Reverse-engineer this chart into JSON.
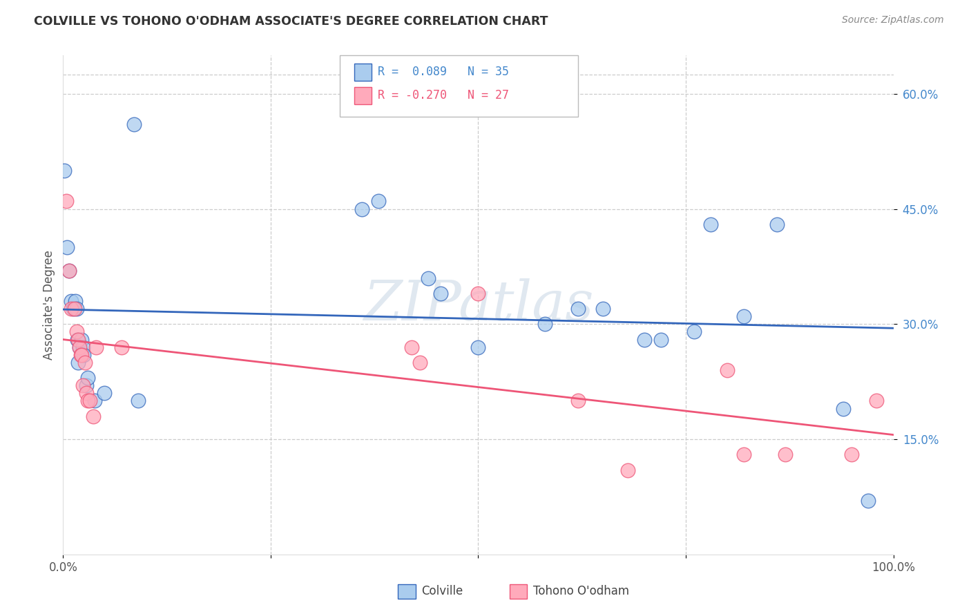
{
  "title": "COLVILLE VS TOHONO O'ODHAM ASSOCIATE'S DEGREE CORRELATION CHART",
  "source": "Source: ZipAtlas.com",
  "ylabel": "Associate's Degree",
  "legend_label1": "Colville",
  "legend_label2": "Tohono O'odham",
  "r1": 0.089,
  "n1": 35,
  "r2": -0.27,
  "n2": 27,
  "color_blue": "#aaccee",
  "color_pink": "#ffaabb",
  "line_color_blue": "#3366bb",
  "line_color_pink": "#ee5577",
  "watermark": "ZIPatlas",
  "xmin": 0.0,
  "xmax": 1.0,
  "ymin": 0.0,
  "ymax": 0.65,
  "ytick_values": [
    0.15,
    0.3,
    0.45,
    0.6
  ],
  "ytick_labels": [
    "15.0%",
    "30.0%",
    "45.0%",
    "60.0%"
  ],
  "colville_x": [
    0.001,
    0.005,
    0.007,
    0.01,
    0.012,
    0.015,
    0.016,
    0.017,
    0.018,
    0.02,
    0.022,
    0.024,
    0.025,
    0.028,
    0.03,
    0.038,
    0.05,
    0.085,
    0.09,
    0.36,
    0.38,
    0.44,
    0.455,
    0.5,
    0.58,
    0.62,
    0.65,
    0.7,
    0.72,
    0.76,
    0.78,
    0.82,
    0.86,
    0.94,
    0.97
  ],
  "colville_y": [
    0.5,
    0.4,
    0.37,
    0.33,
    0.32,
    0.33,
    0.32,
    0.28,
    0.25,
    0.27,
    0.28,
    0.27,
    0.26,
    0.22,
    0.23,
    0.2,
    0.21,
    0.56,
    0.2,
    0.45,
    0.46,
    0.36,
    0.34,
    0.27,
    0.3,
    0.32,
    0.32,
    0.28,
    0.28,
    0.29,
    0.43,
    0.31,
    0.43,
    0.19,
    0.07
  ],
  "tohono_x": [
    0.004,
    0.007,
    0.01,
    0.014,
    0.016,
    0.018,
    0.02,
    0.021,
    0.022,
    0.024,
    0.026,
    0.028,
    0.03,
    0.032,
    0.036,
    0.04,
    0.07,
    0.42,
    0.43,
    0.5,
    0.62,
    0.68,
    0.8,
    0.82,
    0.87,
    0.95,
    0.98
  ],
  "tohono_y": [
    0.46,
    0.37,
    0.32,
    0.32,
    0.29,
    0.28,
    0.27,
    0.26,
    0.26,
    0.22,
    0.25,
    0.21,
    0.2,
    0.2,
    0.18,
    0.27,
    0.27,
    0.27,
    0.25,
    0.34,
    0.2,
    0.11,
    0.24,
    0.13,
    0.13,
    0.13,
    0.2
  ]
}
